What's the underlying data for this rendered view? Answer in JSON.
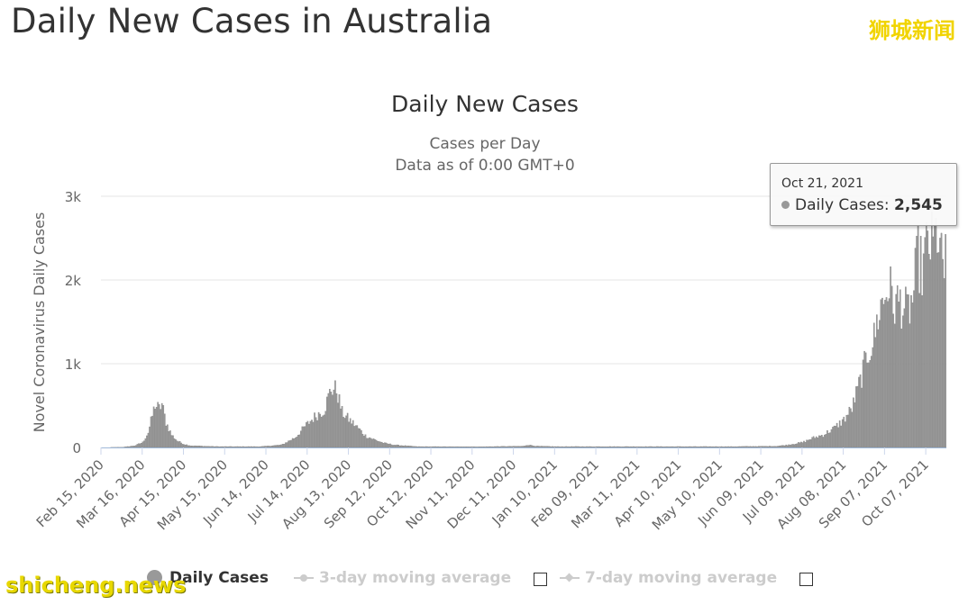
{
  "page": {
    "title": "Daily New Cases in Australia",
    "watermark_top": "狮城新闻",
    "watermark_bottom": "shicheng.news"
  },
  "tooltip": {
    "date": "Oct 21, 2021",
    "label": "Daily Cases",
    "value": "2,545"
  },
  "legend": {
    "items": [
      {
        "label": "Daily Cases",
        "enabled": true
      },
      {
        "label": "3-day moving average",
        "enabled": false
      },
      {
        "label": "7-day moving average",
        "enabled": false
      }
    ]
  },
  "colors": {
    "bar": "#999999",
    "bar_stroke": "#7c7c7c",
    "grid": "#e6e6e6",
    "axis": "#ccd6eb",
    "baseline_line": "#9fb9d9",
    "watermark": "#f1d400"
  },
  "chart_data": {
    "type": "bar",
    "title": "Daily New Cases",
    "subtitle_lines": [
      "Cases per Day",
      "Data as of 0:00 GMT+0"
    ],
    "ylabel": "Novel Coronavirus Daily Cases",
    "xlabel": "",
    "x_start": "2020-02-15",
    "x_end": "2021-10-21",
    "ylim": [
      0,
      3000
    ],
    "yticks": [
      {
        "value": 0,
        "label": "0"
      },
      {
        "value": 1000,
        "label": "1k"
      },
      {
        "value": 2000,
        "label": "2k"
      },
      {
        "value": 3000,
        "label": "3k"
      }
    ],
    "xticks": [
      {
        "date": "2020-02-15",
        "label": "Feb 15, 2020"
      },
      {
        "date": "2020-03-16",
        "label": "Mar 16, 2020"
      },
      {
        "date": "2020-04-15",
        "label": "Apr 15, 2020"
      },
      {
        "date": "2020-05-15",
        "label": "May 15, 2020"
      },
      {
        "date": "2020-06-14",
        "label": "Jun 14, 2020"
      },
      {
        "date": "2020-07-14",
        "label": "Jul 14, 2020"
      },
      {
        "date": "2020-08-13",
        "label": "Aug 13, 2020"
      },
      {
        "date": "2020-09-12",
        "label": "Sep 12, 2020"
      },
      {
        "date": "2020-10-12",
        "label": "Oct 12, 2020"
      },
      {
        "date": "2020-11-11",
        "label": "Nov 11, 2020"
      },
      {
        "date": "2020-12-11",
        "label": "Dec 11, 2020"
      },
      {
        "date": "2021-01-10",
        "label": "Jan 10, 2021"
      },
      {
        "date": "2021-02-09",
        "label": "Feb 09, 2021"
      },
      {
        "date": "2021-03-11",
        "label": "Mar 11, 2021"
      },
      {
        "date": "2021-04-10",
        "label": "Apr 10, 2021"
      },
      {
        "date": "2021-05-10",
        "label": "May 10, 2021"
      },
      {
        "date": "2021-06-09",
        "label": "Jun 09, 2021"
      },
      {
        "date": "2021-07-09",
        "label": "Jul 09, 2021"
      },
      {
        "date": "2021-08-08",
        "label": "Aug 08, 2021"
      },
      {
        "date": "2021-09-07",
        "label": "Sep 07, 2021"
      },
      {
        "date": "2021-10-07",
        "label": "Oct 07, 2021"
      }
    ],
    "series": [
      {
        "name": "Daily Cases",
        "note": "approximate daily values read from the chart; keypoints interpolated between listed dates",
        "keypoints": [
          {
            "date": "2020-02-15",
            "value": 0
          },
          {
            "date": "2020-03-01",
            "value": 2
          },
          {
            "date": "2020-03-10",
            "value": 20
          },
          {
            "date": "2020-03-16",
            "value": 60
          },
          {
            "date": "2020-03-20",
            "value": 180
          },
          {
            "date": "2020-03-23",
            "value": 380
          },
          {
            "date": "2020-03-25",
            "value": 510
          },
          {
            "date": "2020-03-28",
            "value": 460
          },
          {
            "date": "2020-03-30",
            "value": 520
          },
          {
            "date": "2020-04-02",
            "value": 300
          },
          {
            "date": "2020-04-06",
            "value": 150
          },
          {
            "date": "2020-04-10",
            "value": 80
          },
          {
            "date": "2020-04-15",
            "value": 40
          },
          {
            "date": "2020-04-20",
            "value": 20
          },
          {
            "date": "2020-05-10",
            "value": 10
          },
          {
            "date": "2020-06-10",
            "value": 10
          },
          {
            "date": "2020-06-25",
            "value": 30
          },
          {
            "date": "2020-07-05",
            "value": 120
          },
          {
            "date": "2020-07-12",
            "value": 250
          },
          {
            "date": "2020-07-20",
            "value": 380
          },
          {
            "date": "2020-07-26",
            "value": 450
          },
          {
            "date": "2020-07-31",
            "value": 700
          },
          {
            "date": "2020-08-04",
            "value": 690
          },
          {
            "date": "2020-08-08",
            "value": 420
          },
          {
            "date": "2020-08-12",
            "value": 350
          },
          {
            "date": "2020-08-18",
            "value": 260
          },
          {
            "date": "2020-08-25",
            "value": 140
          },
          {
            "date": "2020-09-01",
            "value": 90
          },
          {
            "date": "2020-09-08",
            "value": 50
          },
          {
            "date": "2020-09-15",
            "value": 30
          },
          {
            "date": "2020-10-01",
            "value": 10
          },
          {
            "date": "2020-11-15",
            "value": 8
          },
          {
            "date": "2020-12-18",
            "value": 15
          },
          {
            "date": "2020-12-21",
            "value": 30
          },
          {
            "date": "2020-12-28",
            "value": 15
          },
          {
            "date": "2021-01-10",
            "value": 10
          },
          {
            "date": "2021-05-20",
            "value": 10
          },
          {
            "date": "2021-06-20",
            "value": 15
          },
          {
            "date": "2021-06-28",
            "value": 30
          },
          {
            "date": "2021-07-09",
            "value": 60
          },
          {
            "date": "2021-07-16",
            "value": 110
          },
          {
            "date": "2021-07-24",
            "value": 150
          },
          {
            "date": "2021-08-01",
            "value": 230
          },
          {
            "date": "2021-08-08",
            "value": 330
          },
          {
            "date": "2021-08-14",
            "value": 470
          },
          {
            "date": "2021-08-20",
            "value": 800
          },
          {
            "date": "2021-08-26",
            "value": 1150
          },
          {
            "date": "2021-08-30",
            "value": 1300
          },
          {
            "date": "2021-09-03",
            "value": 1650
          },
          {
            "date": "2021-09-07",
            "value": 1800
          },
          {
            "date": "2021-09-10",
            "value": 1950
          },
          {
            "date": "2021-09-13",
            "value": 1700
          },
          {
            "date": "2021-09-18",
            "value": 1750
          },
          {
            "date": "2021-09-23",
            "value": 1600
          },
          {
            "date": "2021-09-27",
            "value": 1750
          },
          {
            "date": "2021-10-01",
            "value": 2300
          },
          {
            "date": "2021-10-04",
            "value": 2100
          },
          {
            "date": "2021-10-08",
            "value": 2450
          },
          {
            "date": "2021-10-12",
            "value": 2400
          },
          {
            "date": "2021-10-15",
            "value": 2600
          },
          {
            "date": "2021-10-18",
            "value": 2200
          },
          {
            "date": "2021-10-20",
            "value": 2100
          },
          {
            "date": "2021-10-21",
            "value": 2545
          }
        ]
      }
    ]
  }
}
